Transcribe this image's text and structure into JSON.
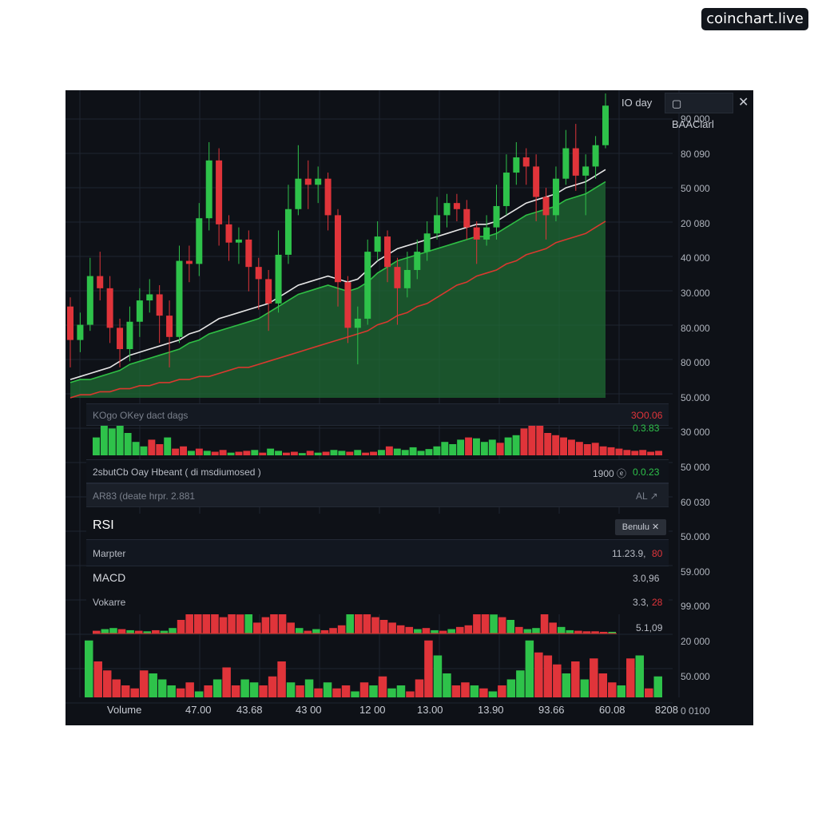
{
  "brand": {
    "label": "coinchart.live"
  },
  "toolbar": {
    "range_label": "IO day",
    "chart_tab_icon": "square-icon",
    "chart_tab_label": "BAAClarl",
    "close_icon": "close-icon"
  },
  "panels": {
    "volume_header": {
      "left": "KOgo OKey dact dags",
      "value_red": "3O0.06",
      "value_green": "0.3.83"
    },
    "status_row": {
      "left": "2sbutCb Oay  Hbeant  ( di msdiumosed )",
      "right_neutral": "1900 ⓔ",
      "right_green": "0.0.23"
    },
    "alert_row": {
      "left": "AR83  (deate  hrpr. 2.881",
      "right": "AL ↗"
    },
    "rsi": {
      "label": "RSI",
      "settings_label": "Benulu ✕"
    },
    "market": {
      "label": "Marpter",
      "value_neutral": "11.23.9,",
      "value_red": "80"
    },
    "macd": {
      "label": "MACD",
      "value": "3.0,96"
    },
    "volume2": {
      "label": "Vokarre",
      "value_neutral": "3.3,",
      "value_red": "28",
      "value2": "5.1,09"
    }
  },
  "colors": {
    "background": "#0e1117",
    "grid": "#1f2530",
    "up": "#2ec24a",
    "down": "#e0343a",
    "ma_fast": "#e6e6e6",
    "ma_mid": "#2fbf45",
    "ma_slow": "#d8392f",
    "area_fill": "#1f6b34"
  },
  "chart_data": {
    "type": "candlestick",
    "y_axis_labels": [
      "90 000",
      "80 090",
      "50 000",
      "20 080",
      "40 000",
      "30.000",
      "80.000",
      "80 000",
      "50.000",
      "30 000",
      "50 000",
      "60 030",
      "50.000",
      "59.000",
      "99.000",
      "20 000",
      "50.000",
      "0 0100"
    ],
    "x_axis_labels": [
      "Volume",
      "47.00",
      "43.68",
      "43 00",
      "12 00",
      "13.00",
      "13.90",
      "93.66",
      "60.08",
      "8208"
    ],
    "price_range": [
      0,
      100
    ],
    "candles": [
      {
        "o": 30,
        "c": 19,
        "h": 33,
        "l": 10
      },
      {
        "o": 19,
        "c": 24,
        "h": 28,
        "l": 15
      },
      {
        "o": 24,
        "c": 40,
        "h": 46,
        "l": 22
      },
      {
        "o": 40,
        "c": 36,
        "h": 48,
        "l": 32
      },
      {
        "o": 36,
        "c": 23,
        "h": 40,
        "l": 18
      },
      {
        "o": 23,
        "c": 16,
        "h": 26,
        "l": 10
      },
      {
        "o": 16,
        "c": 25,
        "h": 30,
        "l": 12
      },
      {
        "o": 25,
        "c": 32,
        "h": 36,
        "l": 20
      },
      {
        "o": 32,
        "c": 34,
        "h": 39,
        "l": 28
      },
      {
        "o": 34,
        "c": 27,
        "h": 37,
        "l": 18
      },
      {
        "o": 27,
        "c": 20,
        "h": 32,
        "l": 10
      },
      {
        "o": 20,
        "c": 45,
        "h": 50,
        "l": 18
      },
      {
        "o": 45,
        "c": 44,
        "h": 50,
        "l": 38
      },
      {
        "o": 44,
        "c": 59,
        "h": 64,
        "l": 40
      },
      {
        "o": 59,
        "c": 78,
        "h": 84,
        "l": 55
      },
      {
        "o": 78,
        "c": 57,
        "h": 82,
        "l": 50
      },
      {
        "o": 57,
        "c": 51,
        "h": 60,
        "l": 45
      },
      {
        "o": 51,
        "c": 52,
        "h": 56,
        "l": 44
      },
      {
        "o": 52,
        "c": 43,
        "h": 55,
        "l": 35
      },
      {
        "o": 43,
        "c": 39,
        "h": 46,
        "l": 29
      },
      {
        "o": 39,
        "c": 31,
        "h": 42,
        "l": 22
      },
      {
        "o": 31,
        "c": 47,
        "h": 55,
        "l": 28
      },
      {
        "o": 47,
        "c": 62,
        "h": 70,
        "l": 44
      },
      {
        "o": 62,
        "c": 72,
        "h": 83,
        "l": 60
      },
      {
        "o": 72,
        "c": 70,
        "h": 78,
        "l": 62
      },
      {
        "o": 70,
        "c": 72,
        "h": 76,
        "l": 64
      },
      {
        "o": 72,
        "c": 60,
        "h": 74,
        "l": 55
      },
      {
        "o": 60,
        "c": 38,
        "h": 62,
        "l": 30
      },
      {
        "o": 38,
        "c": 23,
        "h": 40,
        "l": 18
      },
      {
        "o": 23,
        "c": 26,
        "h": 30,
        "l": 11
      },
      {
        "o": 26,
        "c": 48,
        "h": 52,
        "l": 24
      },
      {
        "o": 48,
        "c": 53,
        "h": 58,
        "l": 45
      },
      {
        "o": 53,
        "c": 43,
        "h": 55,
        "l": 38
      },
      {
        "o": 43,
        "c": 36,
        "h": 46,
        "l": 24
      },
      {
        "o": 36,
        "c": 42,
        "h": 48,
        "l": 33
      },
      {
        "o": 42,
        "c": 48,
        "h": 52,
        "l": 39
      },
      {
        "o": 48,
        "c": 54,
        "h": 58,
        "l": 45
      },
      {
        "o": 54,
        "c": 60,
        "h": 66,
        "l": 52
      },
      {
        "o": 60,
        "c": 64,
        "h": 67,
        "l": 56
      },
      {
        "o": 64,
        "c": 62,
        "h": 67,
        "l": 58
      },
      {
        "o": 62,
        "c": 56,
        "h": 65,
        "l": 52
      },
      {
        "o": 56,
        "c": 52,
        "h": 58,
        "l": 44
      },
      {
        "o": 52,
        "c": 56,
        "h": 60,
        "l": 50
      },
      {
        "o": 56,
        "c": 63,
        "h": 70,
        "l": 52
      },
      {
        "o": 63,
        "c": 74,
        "h": 80,
        "l": 60
      },
      {
        "o": 74,
        "c": 79,
        "h": 84,
        "l": 70
      },
      {
        "o": 79,
        "c": 76,
        "h": 82,
        "l": 70
      },
      {
        "o": 76,
        "c": 66,
        "h": 80,
        "l": 58
      },
      {
        "o": 66,
        "c": 60,
        "h": 69,
        "l": 52
      },
      {
        "o": 60,
        "c": 72,
        "h": 76,
        "l": 58
      },
      {
        "o": 72,
        "c": 82,
        "h": 88,
        "l": 70
      },
      {
        "o": 82,
        "c": 73,
        "h": 90,
        "l": 68
      },
      {
        "o": 73,
        "c": 76,
        "h": 80,
        "l": 60
      },
      {
        "o": 76,
        "c": 83,
        "h": 86,
        "l": 72
      },
      {
        "o": 83,
        "c": 96,
        "h": 100,
        "l": 82
      }
    ],
    "ma_fast": [
      6,
      7,
      8,
      9,
      10,
      12,
      14,
      15,
      16,
      17,
      18,
      19,
      21,
      22,
      24,
      26,
      27,
      28,
      29,
      30,
      31,
      33,
      35,
      37,
      38,
      39,
      40,
      39,
      38,
      39,
      42,
      45,
      47,
      49,
      50,
      51,
      52,
      53,
      54,
      55,
      56,
      57,
      57,
      58,
      60,
      62,
      64,
      65,
      66,
      67,
      69,
      70,
      71,
      73,
      75
    ],
    "ma_mid": [
      5,
      6,
      6,
      7,
      8,
      9,
      11,
      12,
      13,
      14,
      15,
      16,
      18,
      19,
      21,
      22,
      23,
      24,
      25,
      26,
      28,
      30,
      32,
      34,
      35,
      36,
      37,
      36,
      35,
      36,
      38,
      41,
      43,
      45,
      46,
      47,
      48,
      49,
      50,
      51,
      52,
      53,
      53,
      54,
      56,
      58,
      60,
      61,
      62,
      63,
      65,
      66,
      67,
      69,
      71
    ],
    "ma_slow": [
      0,
      1,
      1,
      2,
      2,
      3,
      3,
      4,
      4,
      5,
      5,
      6,
      6,
      7,
      7,
      8,
      9,
      10,
      10,
      11,
      12,
      13,
      14,
      15,
      16,
      17,
      18,
      19,
      20,
      21,
      22,
      24,
      25,
      27,
      28,
      30,
      31,
      33,
      35,
      37,
      38,
      40,
      41,
      42,
      44,
      45,
      47,
      48,
      49,
      51,
      52,
      53,
      54,
      56,
      58
    ],
    "volume_top": [
      40,
      70,
      60,
      75,
      50,
      30,
      20,
      35,
      25,
      40,
      15,
      20,
      10,
      15,
      10,
      8,
      12,
      6,
      8,
      10,
      12,
      6,
      15,
      10,
      6,
      8,
      5,
      10,
      6,
      8,
      12,
      10,
      8,
      12,
      6,
      8,
      12,
      20,
      15,
      12,
      18,
      10,
      14,
      20,
      30,
      25,
      35,
      40,
      38,
      30,
      35,
      28,
      40,
      45,
      60,
      85,
      70,
      50,
      45,
      40,
      35,
      30,
      25,
      28,
      20,
      18,
      15,
      12,
      10,
      12,
      8,
      10
    ],
    "volume_top_colors": "gggggggrrgrrgrgrrgrrgrggrrgrgrggrgrrgrgggggggggrgggrggrrrrrrrrrrrrrrrrrrrrr",
    "volume_bottom": [
      95,
      60,
      45,
      30,
      20,
      15,
      45,
      40,
      30,
      20,
      15,
      25,
      10,
      20,
      30,
      50,
      20,
      30,
      25,
      20,
      35,
      60,
      25,
      20,
      30,
      15,
      25,
      15,
      20,
      10,
      25,
      20,
      35,
      15,
      20,
      10,
      30,
      95,
      70,
      40,
      20,
      25,
      20,
      15,
      10,
      20,
      30,
      45,
      95,
      75,
      70,
      55,
      40,
      60,
      30,
      65,
      40,
      25,
      20,
      65,
      70,
      15,
      35
    ],
    "volume_bottom_colors": "grrrrrrgggrrgrgrrggrrrgrgrgrrgrgrggrrrggrrgrgrgggrrrgrgrrrgrgrg",
    "macd_bars": [
      5,
      8,
      10,
      8,
      6,
      5,
      4,
      6,
      5,
      10,
      25,
      40,
      65,
      50,
      40,
      30,
      55,
      35,
      40,
      20,
      30,
      90,
      40,
      20,
      10,
      5,
      8,
      6,
      10,
      15,
      50,
      70,
      40,
      30,
      25,
      20,
      15,
      12,
      8,
      10,
      6,
      5,
      8,
      12,
      15,
      40,
      60,
      35,
      30,
      25,
      12,
      8,
      10,
      45,
      20,
      12,
      6,
      5,
      4,
      4,
      3,
      3
    ],
    "macd_colors": "rggrgrgrggrrrrrrrrgrrrrrgrgrrrgrrrrrrrgrgrgrrrrgrgrggrrggrrr"
  }
}
